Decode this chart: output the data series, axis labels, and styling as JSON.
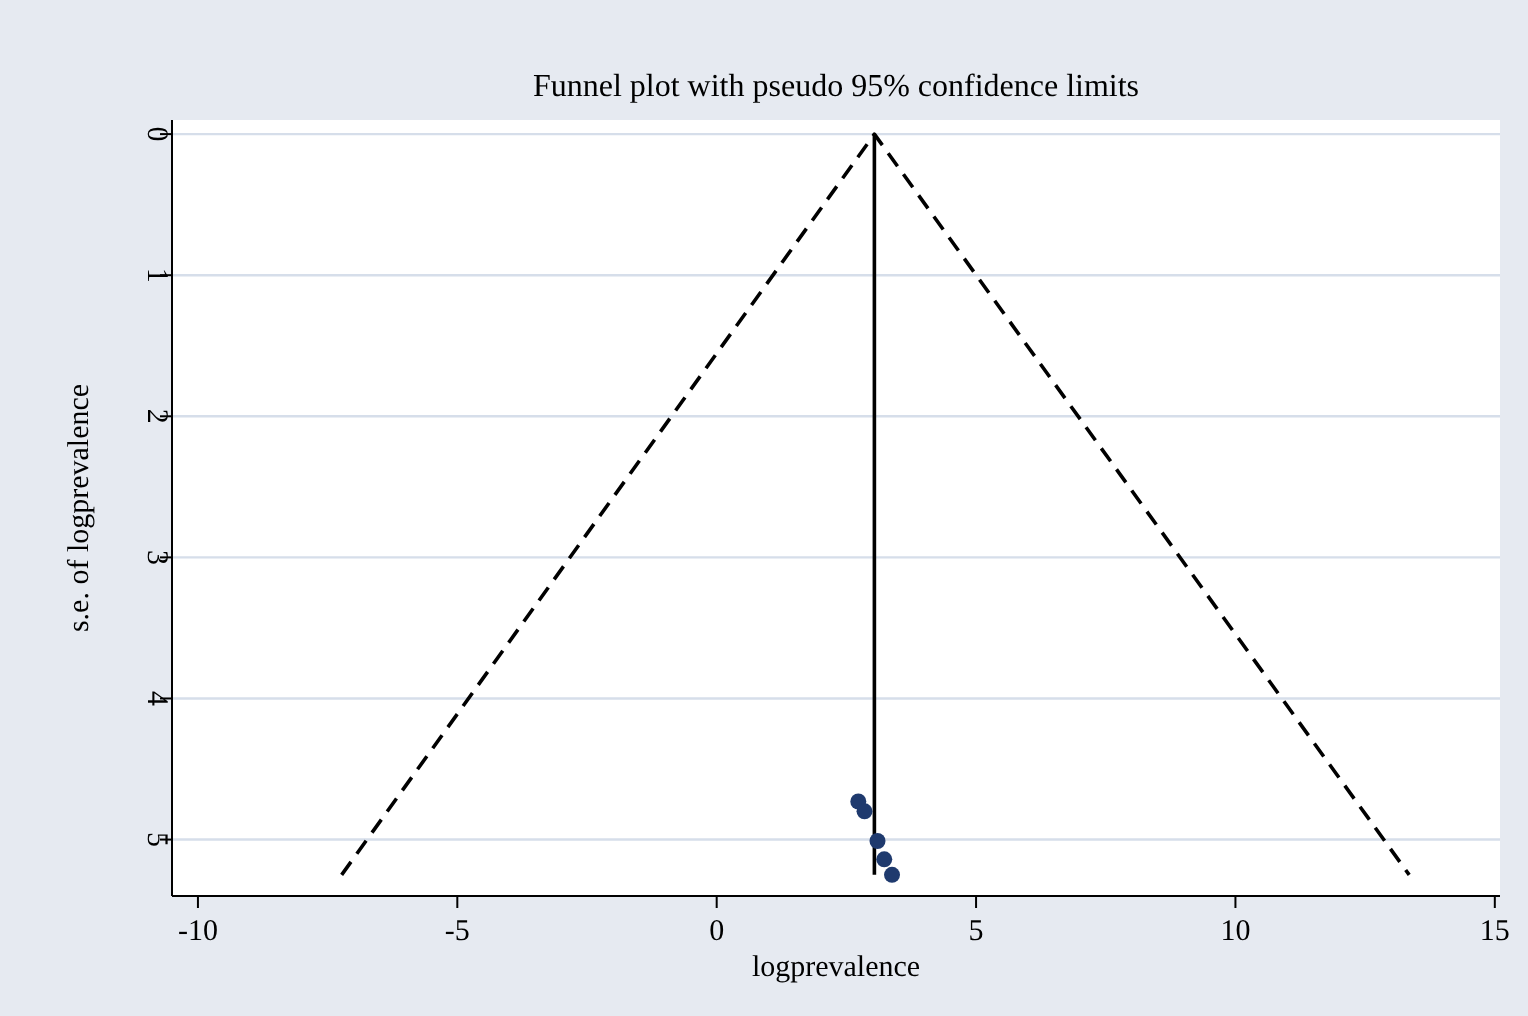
{
  "chart_data": {
    "type": "scatter",
    "title": "Funnel plot with pseudo 95% confidence limits",
    "xlabel": "logprevalence",
    "ylabel": "s.e. of logprevalence",
    "xlim": [
      -10.5,
      15.1
    ],
    "ylim": [
      5.4,
      -0.1
    ],
    "xticks": [
      -10,
      -5,
      0,
      5,
      10,
      15
    ],
    "yticks": [
      0,
      1,
      2,
      3,
      4,
      5
    ],
    "grid": "y",
    "series": [
      {
        "type": "line",
        "color": "#000000",
        "line_style": "dashed",
        "marker": "none",
        "x": [
          -7.23,
          3.04,
          13.35
        ],
        "values": [
          5.25,
          0,
          5.25
        ]
      },
      {
        "type": "line",
        "color": "#000000",
        "line_style": "solid",
        "marker": "none",
        "x": [
          3.04,
          3.04
        ],
        "values": [
          5.25,
          0
        ]
      },
      {
        "color": "#1f3a6e",
        "marker": "circle",
        "x": [
          2.73,
          2.85,
          3.1,
          3.23,
          3.38
        ],
        "values": [
          4.73,
          4.8,
          5.01,
          5.14,
          5.25
        ]
      }
    ]
  }
}
